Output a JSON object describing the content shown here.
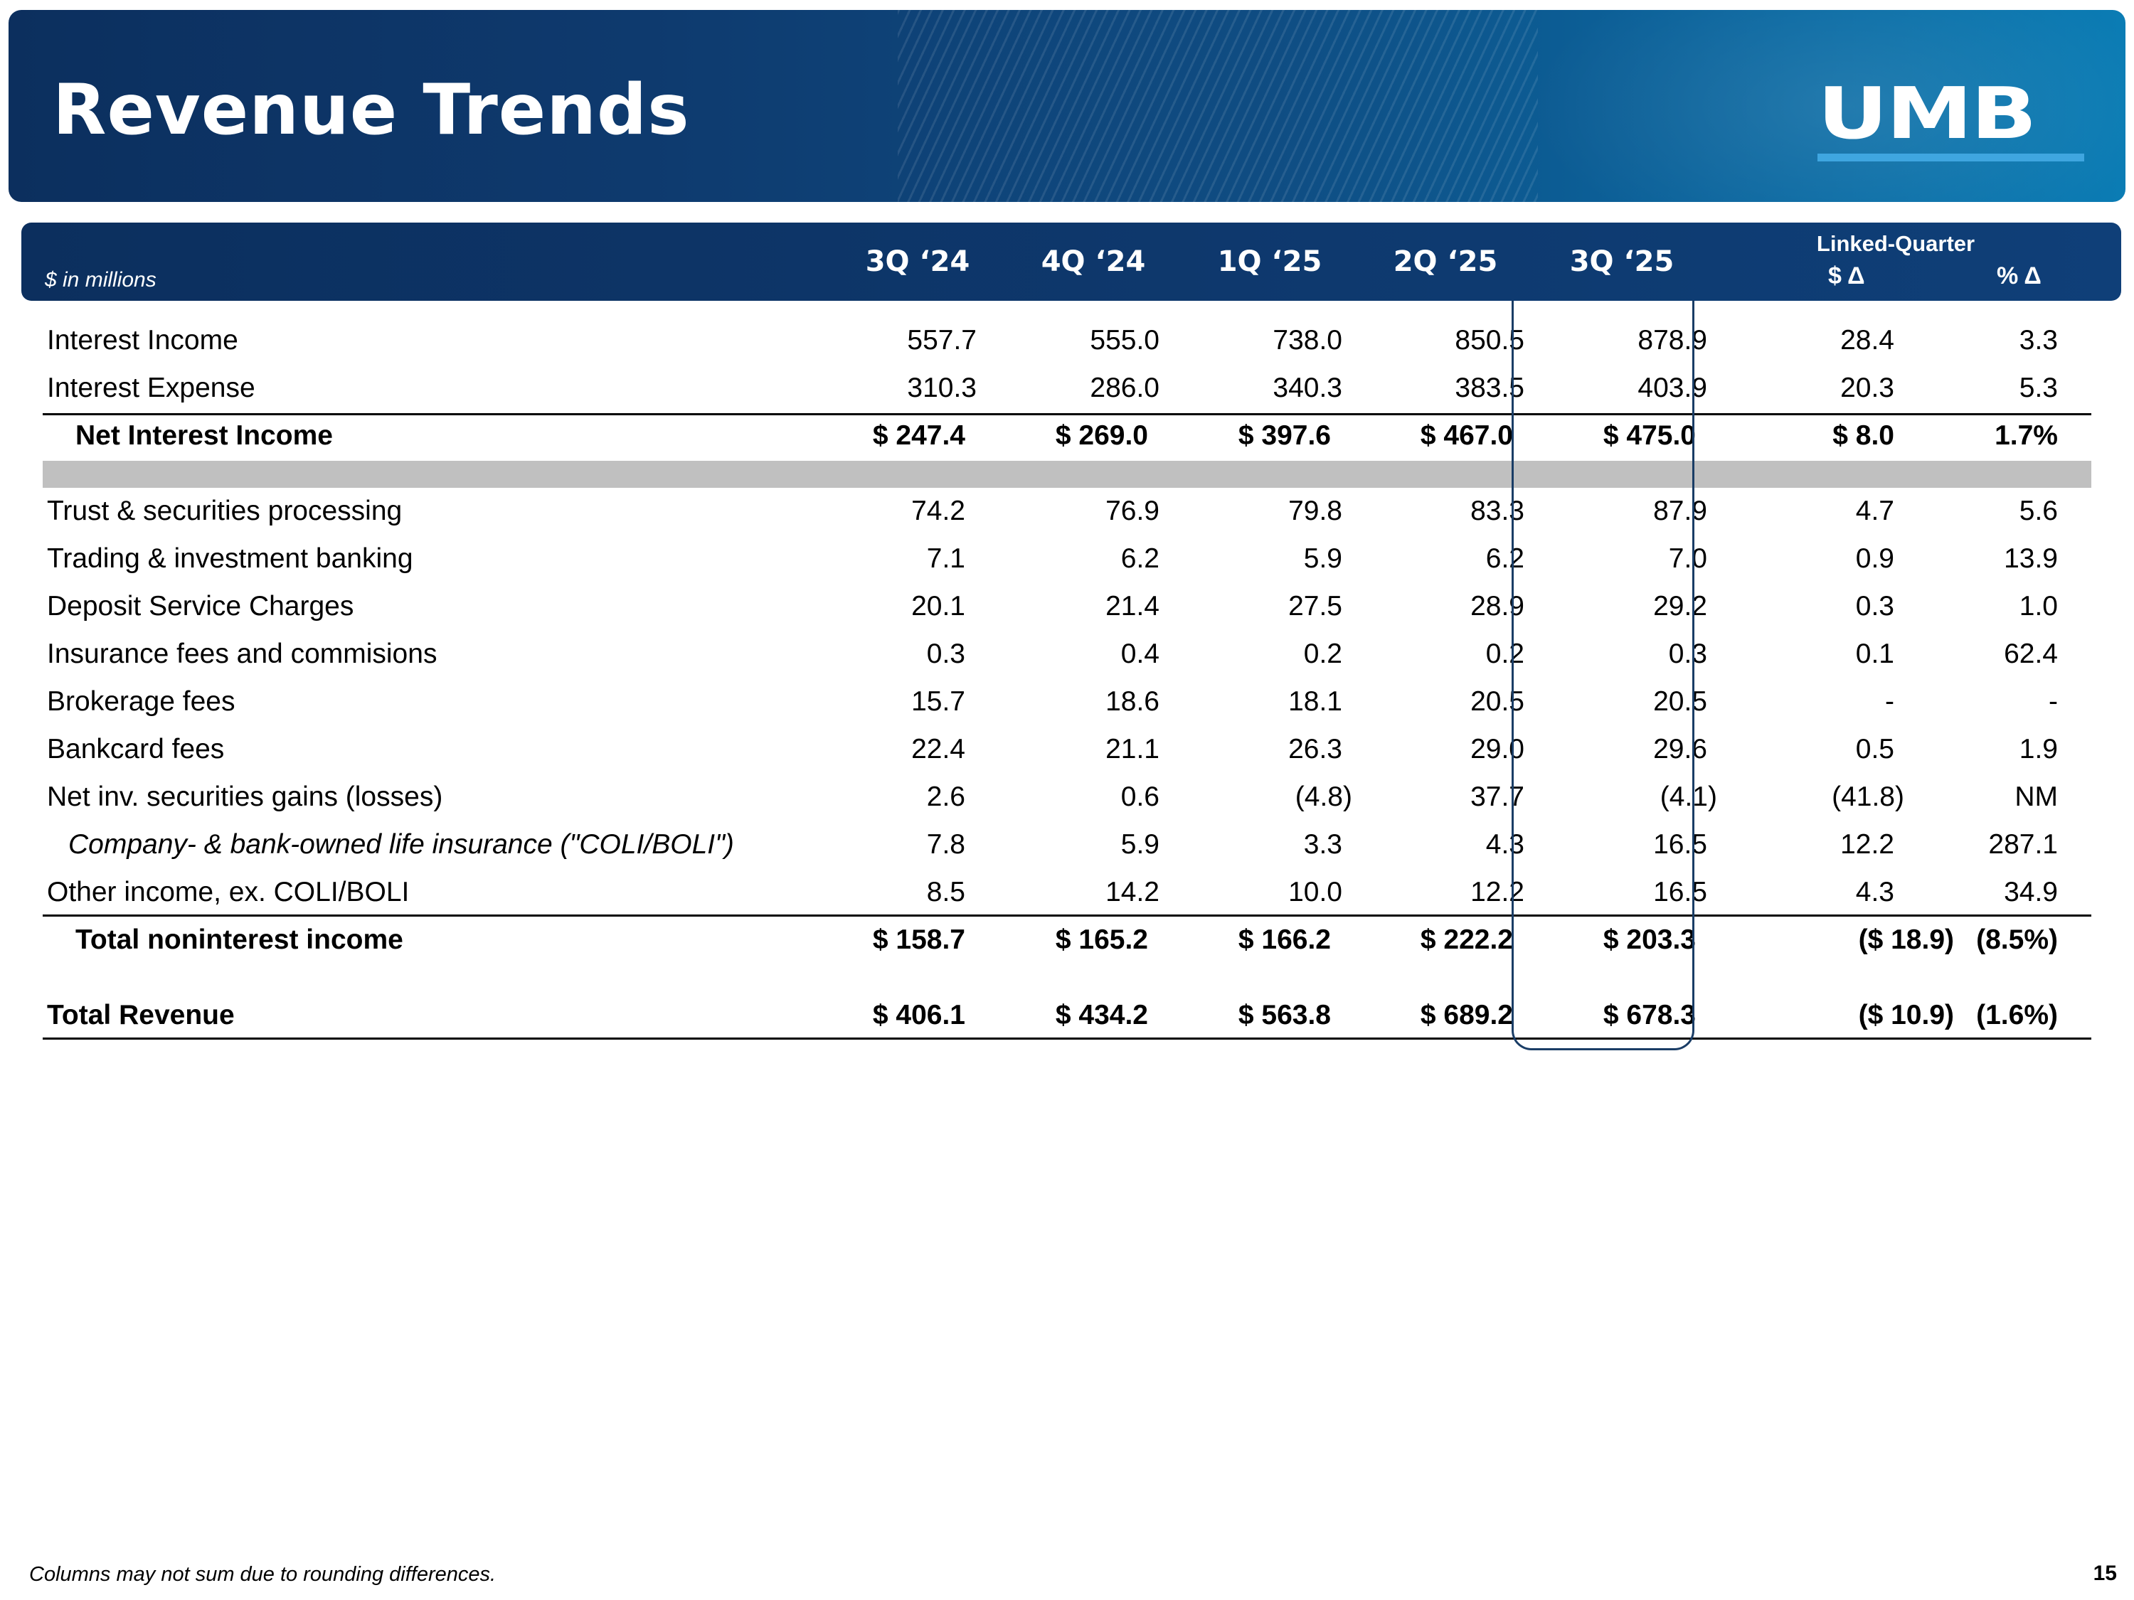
{
  "title": "Revenue Trends",
  "logo": "UMB",
  "table": {
    "units": "$ in millions",
    "columns": [
      "3Q ‘24",
      "4Q ‘24",
      "1Q ‘25",
      "2Q ‘25",
      "3Q ‘25"
    ],
    "linked_quarter": {
      "label": "Linked-Quarter",
      "dollar_change": "$ Δ",
      "percent_change": "% Δ"
    },
    "rows": [
      {
        "label": "Interest Income",
        "values": [
          "557.7",
          "555.0",
          "738.0",
          "850.5",
          "878.9",
          "28.4",
          "3.3"
        ]
      },
      {
        "label": "Interest Expense",
        "values": [
          "310.3",
          "286.0",
          "340.3",
          "383.5",
          "403.9",
          "20.3",
          "5.3"
        ]
      },
      {
        "label": "Net Interest Income",
        "values": [
          "$ 247.4",
          "$ 269.0",
          "$ 397.6",
          "$ 467.0",
          "$ 475.0",
          "$ 8.0",
          "1.7%"
        ]
      },
      {
        "label": "Trust & securities processing",
        "values": [
          "74.2",
          "76.9",
          "79.8",
          "83.3",
          "87.9",
          "4.7",
          "5.6"
        ]
      },
      {
        "label": "Trading & investment banking",
        "values": [
          "7.1",
          "6.2",
          "5.9",
          "6.2",
          "7.0",
          "0.9",
          "13.9"
        ]
      },
      {
        "label": "Deposit Service Charges",
        "values": [
          "20.1",
          "21.4",
          "27.5",
          "28.9",
          "29.2",
          "0.3",
          "1.0"
        ]
      },
      {
        "label": "Insurance fees and commisions",
        "values": [
          "0.3",
          "0.4",
          "0.2",
          "0.2",
          "0.3",
          "0.1",
          "62.4"
        ]
      },
      {
        "label": "Brokerage fees",
        "values": [
          "15.7",
          "18.6",
          "18.1",
          "20.5",
          "20.5",
          "-",
          "-"
        ]
      },
      {
        "label": "Bankcard fees",
        "values": [
          "22.4",
          "21.1",
          "26.3",
          "29.0",
          "29.6",
          "0.5",
          "1.9"
        ]
      },
      {
        "label": "Net inv. securities gains (losses)",
        "values": [
          "2.6",
          "0.6",
          "(4.8)",
          "37.7",
          "(4.1)",
          "(41.8)",
          "NM"
        ]
      },
      {
        "label": "Company- & bank-owned life insurance (\"COLI/BOLI\")",
        "values": [
          "7.8",
          "5.9",
          "3.3",
          "4.3",
          "16.5",
          "12.2",
          "287.1"
        ]
      },
      {
        "label": "Other income, ex. COLI/BOLI",
        "values": [
          "8.5",
          "14.2",
          "10.0",
          "12.2",
          "16.5",
          "4.3",
          "34.9"
        ]
      },
      {
        "label": "Total noninterest income",
        "values": [
          "$ 158.7",
          "$ 165.2",
          "$ 166.2",
          "$ 222.2",
          "$ 203.3",
          "($  18.9)",
          "(8.5%)"
        ]
      },
      {
        "label": "Total Revenue",
        "values": [
          "$ 406.1",
          "$ 434.2",
          "$ 563.8",
          "$ 689.2",
          "$ 678.3",
          "($ 10.9)",
          "(1.6%)"
        ]
      }
    ]
  },
  "footnote": "Columns may not sum due to rounding differences.",
  "page_number": "15"
}
